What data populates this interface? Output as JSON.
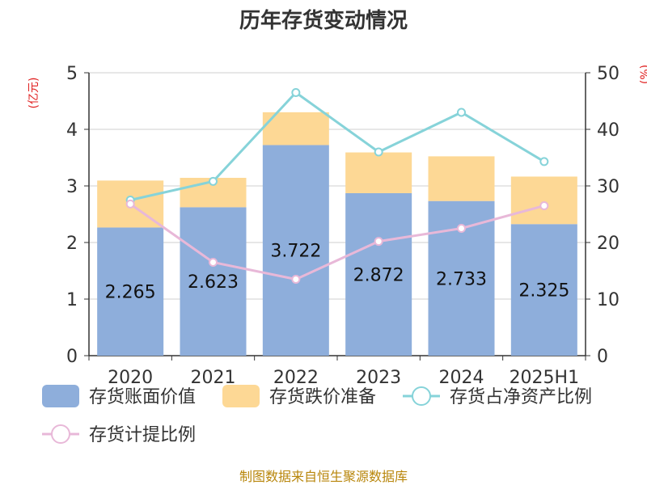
{
  "chart_data": {
    "type": "bar",
    "title": "历年存货变动情况",
    "categories": [
      "2020",
      "2021",
      "2022",
      "2023",
      "2024",
      "2025H1"
    ],
    "left_axis": {
      "unit": "(亿元)",
      "ylim": [
        0,
        5
      ],
      "ticks": [
        "0",
        "1",
        "2",
        "3",
        "4",
        "5"
      ]
    },
    "right_axis": {
      "unit": "(%)",
      "ylim": [
        0,
        50
      ],
      "ticks": [
        "0",
        "10",
        "20",
        "30",
        "40",
        "50"
      ]
    },
    "series": [
      {
        "name": "存货账面价值",
        "type": "bar",
        "stack": "inv",
        "axis": "left",
        "color": "#8eaedb",
        "values": [
          2.265,
          2.623,
          3.722,
          2.872,
          2.733,
          2.325
        ],
        "labels": [
          "2.265",
          "2.623",
          "3.722",
          "2.872",
          "2.733",
          "2.325"
        ]
      },
      {
        "name": "存货跌价准备",
        "type": "bar",
        "stack": "inv",
        "axis": "left",
        "color": "#fdd895",
        "values": [
          0.83,
          0.52,
          0.58,
          0.72,
          0.79,
          0.84
        ]
      },
      {
        "name": "存货占净资产比例",
        "type": "line",
        "axis": "right",
        "color": "#86d3d9",
        "values": [
          27.5,
          30.8,
          46.5,
          36.0,
          43.0,
          34.3
        ]
      },
      {
        "name": "存货计提比例",
        "type": "line",
        "axis": "right",
        "color": "#e8b8d8",
        "values": [
          26.8,
          16.5,
          13.5,
          20.2,
          22.5,
          26.5
        ]
      }
    ],
    "grid": true,
    "legend_position": "bottom"
  },
  "footer": {
    "source": "制图数据来自恒生聚源数据库"
  }
}
